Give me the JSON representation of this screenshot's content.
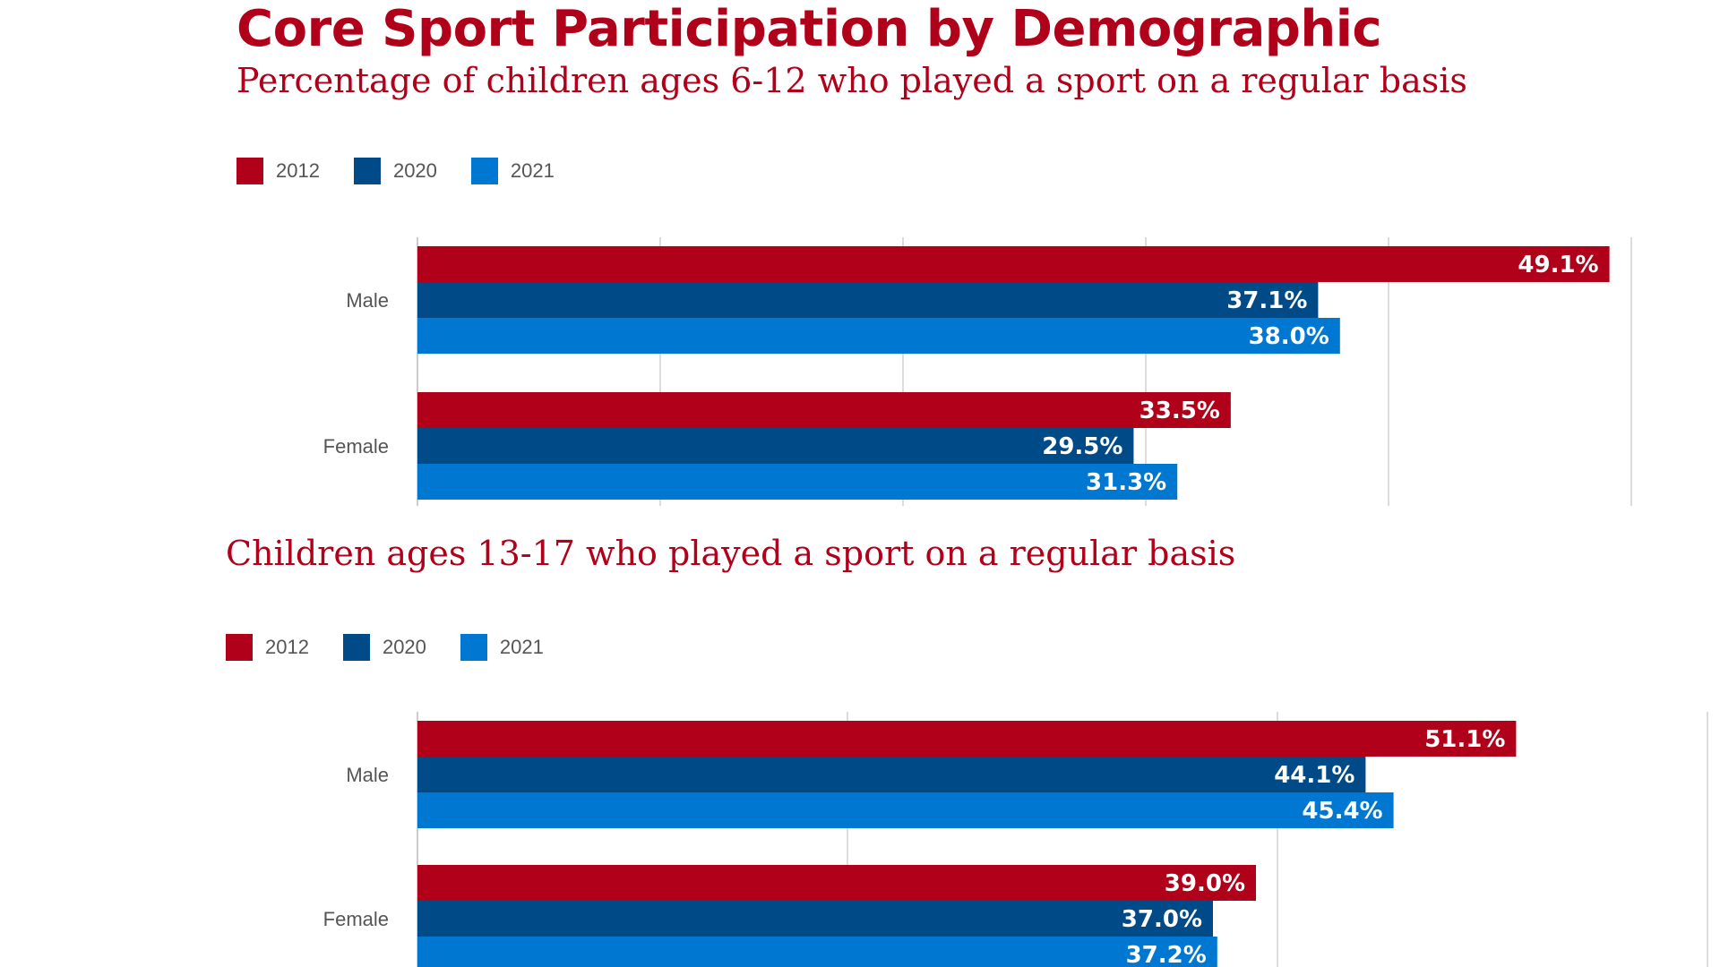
{
  "title": "Core Sport Participation by Demographic",
  "colors": {
    "title": "#b0001a",
    "2012": "#b0001a",
    "2020": "#004b87",
    "2021": "#0078d2",
    "grid": "#d0d0d0"
  },
  "chart_data": [
    {
      "type": "bar",
      "orientation": "horizontal",
      "subtitle": "Percentage of children ages 6-12 who played a sport on a regular basis",
      "legend": [
        "2012",
        "2020",
        "2021"
      ],
      "legend_position": "top-left",
      "categories": [
        "Male",
        "Female"
      ],
      "series": [
        {
          "name": "2012",
          "values": [
            49.1,
            33.5
          ],
          "labels": [
            "49.1%",
            "33.5%"
          ]
        },
        {
          "name": "2020",
          "values": [
            37.1,
            29.5
          ],
          "labels": [
            "37.1%",
            "29.5%"
          ]
        },
        {
          "name": "2021",
          "values": [
            38.0,
            31.3
          ],
          "labels": [
            "38.0%",
            "31.3%"
          ]
        }
      ],
      "xlim": [
        0,
        50
      ],
      "grid": true
    },
    {
      "type": "bar",
      "orientation": "horizontal",
      "subtitle": "Children ages 13-17 who played a sport on a regular basis",
      "legend": [
        "2012",
        "2020",
        "2021"
      ],
      "legend_position": "top-left",
      "categories": [
        "Male",
        "Female"
      ],
      "series": [
        {
          "name": "2012",
          "values": [
            51.1,
            39.0
          ],
          "labels": [
            "51.1%",
            "39.0%"
          ]
        },
        {
          "name": "2020",
          "values": [
            44.1,
            37.0
          ],
          "labels": [
            "44.1%",
            "37.0%"
          ]
        },
        {
          "name": "2021",
          "values": [
            45.4,
            37.2
          ],
          "labels": [
            "45.4%",
            "37.2%"
          ]
        }
      ],
      "xlim": [
        0,
        60
      ],
      "grid": true
    }
  ]
}
